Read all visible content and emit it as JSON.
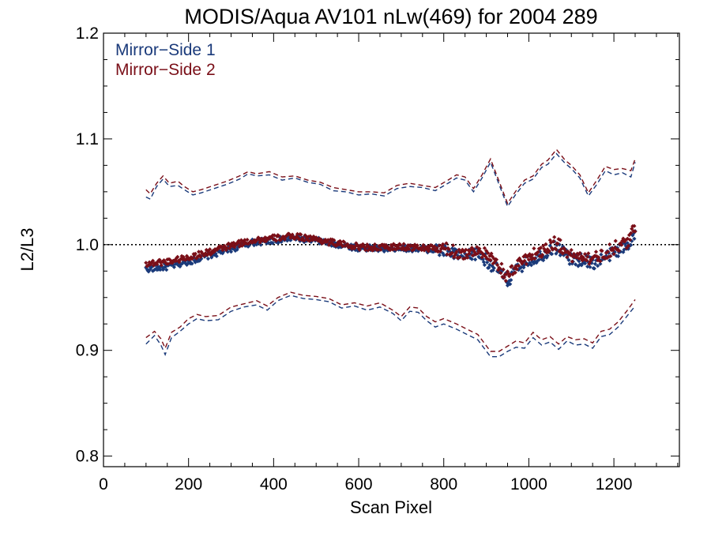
{
  "chart_data": {
    "type": "scatter",
    "title": "MODIS/Aqua AV101 nLw(469) for 2004 289",
    "xlabel": "Scan Pixel",
    "ylabel": "L2/L3",
    "xlim": [
      0,
      1354
    ],
    "ylim": [
      0.79,
      1.2
    ],
    "x_ticks": [
      0,
      200,
      400,
      600,
      800,
      1000,
      1200
    ],
    "y_ticks": [
      0.8,
      0.9,
      1.0,
      1.1,
      1.2
    ],
    "x_tick_labels": [
      "0",
      "200",
      "400",
      "600",
      "800",
      "1000",
      "1200"
    ],
    "y_tick_labels": [
      "0.8",
      "0.9",
      "1.0",
      "1.1",
      "1.2"
    ],
    "reference_line": 1.0,
    "legend_position": "top-left",
    "colors": {
      "ms1": "#1a3a7a",
      "ms2": "#7a0f18",
      "axis": "#000000"
    },
    "series": [
      {
        "name": "Mirror−Side 1",
        "color": "#1a3a7a",
        "mean": [
          [
            100,
            0.977
          ],
          [
            150,
            0.979
          ],
          [
            200,
            0.984
          ],
          [
            250,
            0.99
          ],
          [
            300,
            0.996
          ],
          [
            350,
            1.002
          ],
          [
            400,
            1.004
          ],
          [
            450,
            1.006
          ],
          [
            500,
            1.004
          ],
          [
            550,
            1.0
          ],
          [
            600,
            0.997
          ],
          [
            650,
            0.996
          ],
          [
            700,
            0.997
          ],
          [
            750,
            0.996
          ],
          [
            800,
            0.994
          ],
          [
            850,
            0.988
          ],
          [
            880,
            0.992
          ],
          [
            900,
            0.985
          ],
          [
            930,
            0.975
          ],
          [
            950,
            0.965
          ],
          [
            975,
            0.978
          ],
          [
            1000,
            0.985
          ],
          [
            1030,
            0.99
          ],
          [
            1060,
            0.998
          ],
          [
            1080,
            0.994
          ],
          [
            1100,
            0.985
          ],
          [
            1130,
            0.986
          ],
          [
            1150,
            0.982
          ],
          [
            1180,
            0.988
          ],
          [
            1200,
            0.993
          ],
          [
            1230,
            0.998
          ],
          [
            1250,
            1.012
          ]
        ],
        "upper": [
          [
            100,
            1.045
          ],
          [
            110,
            1.043
          ],
          [
            125,
            1.055
          ],
          [
            140,
            1.062
          ],
          [
            155,
            1.055
          ],
          [
            175,
            1.056
          ],
          [
            190,
            1.052
          ],
          [
            210,
            1.047
          ],
          [
            230,
            1.049
          ],
          [
            260,
            1.053
          ],
          [
            290,
            1.057
          ],
          [
            320,
            1.062
          ],
          [
            340,
            1.067
          ],
          [
            360,
            1.065
          ],
          [
            390,
            1.066
          ],
          [
            420,
            1.061
          ],
          [
            450,
            1.063
          ],
          [
            480,
            1.059
          ],
          [
            510,
            1.057
          ],
          [
            540,
            1.051
          ],
          [
            570,
            1.05
          ],
          [
            600,
            1.047
          ],
          [
            630,
            1.048
          ],
          [
            660,
            1.046
          ],
          [
            690,
            1.053
          ],
          [
            720,
            1.055
          ],
          [
            750,
            1.054
          ],
          [
            780,
            1.051
          ],
          [
            810,
            1.058
          ],
          [
            830,
            1.063
          ],
          [
            850,
            1.061
          ],
          [
            870,
            1.05
          ],
          [
            890,
            1.063
          ],
          [
            910,
            1.078
          ],
          [
            930,
            1.057
          ],
          [
            950,
            1.036
          ],
          [
            970,
            1.048
          ],
          [
            990,
            1.058
          ],
          [
            1010,
            1.062
          ],
          [
            1030,
            1.073
          ],
          [
            1045,
            1.076
          ],
          [
            1065,
            1.086
          ],
          [
            1085,
            1.077
          ],
          [
            1100,
            1.072
          ],
          [
            1120,
            1.063
          ],
          [
            1140,
            1.046
          ],
          [
            1160,
            1.057
          ],
          [
            1180,
            1.07
          ],
          [
            1200,
            1.066
          ],
          [
            1220,
            1.068
          ],
          [
            1240,
            1.064
          ],
          [
            1250,
            1.078
          ]
        ],
        "lower": [
          [
            100,
            0.906
          ],
          [
            120,
            0.914
          ],
          [
            135,
            0.905
          ],
          [
            145,
            0.896
          ],
          [
            160,
            0.912
          ],
          [
            180,
            0.918
          ],
          [
            200,
            0.925
          ],
          [
            220,
            0.93
          ],
          [
            240,
            0.928
          ],
          [
            270,
            0.929
          ],
          [
            300,
            0.937
          ],
          [
            330,
            0.941
          ],
          [
            360,
            0.943
          ],
          [
            385,
            0.938
          ],
          [
            410,
            0.947
          ],
          [
            440,
            0.952
          ],
          [
            470,
            0.949
          ],
          [
            500,
            0.948
          ],
          [
            530,
            0.946
          ],
          [
            560,
            0.94
          ],
          [
            590,
            0.942
          ],
          [
            620,
            0.938
          ],
          [
            650,
            0.941
          ],
          [
            680,
            0.935
          ],
          [
            700,
            0.928
          ],
          [
            720,
            0.937
          ],
          [
            740,
            0.936
          ],
          [
            760,
            0.928
          ],
          [
            780,
            0.922
          ],
          [
            800,
            0.925
          ],
          [
            830,
            0.92
          ],
          [
            850,
            0.916
          ],
          [
            880,
            0.91
          ],
          [
            910,
            0.894
          ],
          [
            930,
            0.894
          ],
          [
            950,
            0.899
          ],
          [
            970,
            0.903
          ],
          [
            990,
            0.902
          ],
          [
            1010,
            0.912
          ],
          [
            1030,
            0.905
          ],
          [
            1050,
            0.908
          ],
          [
            1070,
            0.901
          ],
          [
            1090,
            0.909
          ],
          [
            1110,
            0.905
          ],
          [
            1130,
            0.906
          ],
          [
            1150,
            0.902
          ],
          [
            1170,
            0.913
          ],
          [
            1190,
            0.915
          ],
          [
            1210,
            0.922
          ],
          [
            1230,
            0.932
          ],
          [
            1250,
            0.942
          ]
        ]
      },
      {
        "name": "Mirror−Side 2",
        "color": "#7a0f18",
        "mean": [
          [
            100,
            0.982
          ],
          [
            150,
            0.984
          ],
          [
            200,
            0.988
          ],
          [
            250,
            0.993
          ],
          [
            300,
            0.999
          ],
          [
            350,
            1.004
          ],
          [
            400,
            1.006
          ],
          [
            450,
            1.008
          ],
          [
            500,
            1.005
          ],
          [
            550,
            1.001
          ],
          [
            600,
            0.998
          ],
          [
            650,
            0.997
          ],
          [
            700,
            0.998
          ],
          [
            750,
            0.997
          ],
          [
            800,
            0.996
          ],
          [
            850,
            0.991
          ],
          [
            880,
            0.996
          ],
          [
            900,
            0.99
          ],
          [
            930,
            0.979
          ],
          [
            950,
            0.969
          ],
          [
            975,
            0.982
          ],
          [
            1000,
            0.989
          ],
          [
            1030,
            0.994
          ],
          [
            1060,
            1.002
          ],
          [
            1080,
            0.997
          ],
          [
            1100,
            0.989
          ],
          [
            1130,
            0.99
          ],
          [
            1150,
            0.986
          ],
          [
            1180,
            0.992
          ],
          [
            1200,
            0.997
          ],
          [
            1230,
            1.002
          ],
          [
            1250,
            1.016
          ]
        ],
        "upper": [
          [
            100,
            1.052
          ],
          [
            110,
            1.048
          ],
          [
            125,
            1.058
          ],
          [
            140,
            1.065
          ],
          [
            155,
            1.058
          ],
          [
            175,
            1.06
          ],
          [
            190,
            1.055
          ],
          [
            210,
            1.05
          ],
          [
            230,
            1.052
          ],
          [
            260,
            1.056
          ],
          [
            290,
            1.06
          ],
          [
            320,
            1.065
          ],
          [
            340,
            1.069
          ],
          [
            360,
            1.067
          ],
          [
            390,
            1.069
          ],
          [
            420,
            1.064
          ],
          [
            450,
            1.065
          ],
          [
            480,
            1.061
          ],
          [
            510,
            1.059
          ],
          [
            540,
            1.054
          ],
          [
            570,
            1.052
          ],
          [
            600,
            1.05
          ],
          [
            630,
            1.05
          ],
          [
            660,
            1.049
          ],
          [
            690,
            1.056
          ],
          [
            720,
            1.058
          ],
          [
            750,
            1.056
          ],
          [
            780,
            1.054
          ],
          [
            810,
            1.061
          ],
          [
            830,
            1.066
          ],
          [
            850,
            1.064
          ],
          [
            870,
            1.053
          ],
          [
            890,
            1.066
          ],
          [
            910,
            1.081
          ],
          [
            930,
            1.06
          ],
          [
            950,
            1.039
          ],
          [
            970,
            1.051
          ],
          [
            990,
            1.061
          ],
          [
            1010,
            1.065
          ],
          [
            1030,
            1.076
          ],
          [
            1045,
            1.08
          ],
          [
            1065,
            1.09
          ],
          [
            1085,
            1.08
          ],
          [
            1100,
            1.075
          ],
          [
            1120,
            1.066
          ],
          [
            1140,
            1.049
          ],
          [
            1160,
            1.061
          ],
          [
            1180,
            1.074
          ],
          [
            1200,
            1.071
          ],
          [
            1220,
            1.072
          ],
          [
            1240,
            1.07
          ],
          [
            1250,
            1.081
          ]
        ],
        "lower": [
          [
            100,
            0.912
          ],
          [
            120,
            0.918
          ],
          [
            135,
            0.911
          ],
          [
            145,
            0.902
          ],
          [
            160,
            0.917
          ],
          [
            180,
            0.922
          ],
          [
            200,
            0.93
          ],
          [
            220,
            0.934
          ],
          [
            240,
            0.932
          ],
          [
            270,
            0.933
          ],
          [
            300,
            0.941
          ],
          [
            330,
            0.944
          ],
          [
            360,
            0.947
          ],
          [
            385,
            0.942
          ],
          [
            410,
            0.95
          ],
          [
            440,
            0.955
          ],
          [
            470,
            0.952
          ],
          [
            500,
            0.951
          ],
          [
            530,
            0.949
          ],
          [
            560,
            0.943
          ],
          [
            590,
            0.945
          ],
          [
            620,
            0.942
          ],
          [
            650,
            0.945
          ],
          [
            680,
            0.938
          ],
          [
            700,
            0.932
          ],
          [
            720,
            0.941
          ],
          [
            740,
            0.94
          ],
          [
            760,
            0.932
          ],
          [
            780,
            0.927
          ],
          [
            800,
            0.93
          ],
          [
            830,
            0.925
          ],
          [
            850,
            0.921
          ],
          [
            880,
            0.915
          ],
          [
            910,
            0.899
          ],
          [
            930,
            0.899
          ],
          [
            950,
            0.904
          ],
          [
            970,
            0.909
          ],
          [
            990,
            0.907
          ],
          [
            1010,
            0.917
          ],
          [
            1030,
            0.91
          ],
          [
            1050,
            0.913
          ],
          [
            1070,
            0.906
          ],
          [
            1090,
            0.913
          ],
          [
            1110,
            0.91
          ],
          [
            1130,
            0.911
          ],
          [
            1150,
            0.907
          ],
          [
            1170,
            0.918
          ],
          [
            1190,
            0.92
          ],
          [
            1210,
            0.927
          ],
          [
            1230,
            0.937
          ],
          [
            1250,
            0.948
          ]
        ]
      }
    ]
  }
}
